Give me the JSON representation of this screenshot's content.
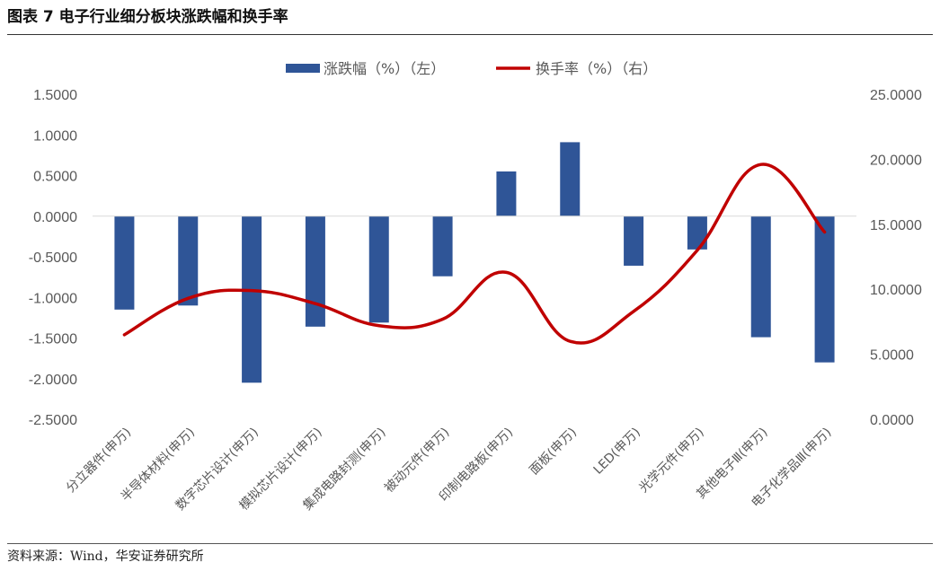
{
  "title": "图表 7 电子行业细分板块涨跌幅和换手率",
  "source": "资料来源：Wind，华安证券研究所",
  "chart_data": {
    "type": "bar+line",
    "categories": [
      "分立器件(申万)",
      "半导体材料(申万)",
      "数字芯片设计(申万)",
      "模拟芯片设计(申万)",
      "集成电路封测(申万)",
      "被动元件(申万)",
      "印制电路板(申万)",
      "面板(申万)",
      "LED(申万)",
      "光学元件(申万)",
      "其他电子Ⅲ(申万)",
      "电子化学品Ⅲ(申万)"
    ],
    "series": [
      {
        "name": "涨跌幅（%）（左）",
        "type": "bar",
        "axis": "left",
        "color": "#2F5597",
        "values": [
          -1.15,
          -1.1,
          -2.05,
          -1.36,
          -1.31,
          -0.74,
          0.55,
          0.91,
          -0.61,
          -0.41,
          -1.49,
          -1.8
        ]
      },
      {
        "name": "换手率（%）（右）",
        "type": "line",
        "axis": "right",
        "color": "#C00000",
        "values": [
          6.5,
          9.3,
          9.9,
          8.9,
          7.2,
          7.7,
          11.3,
          6.0,
          8.3,
          13.0,
          19.6,
          14.4
        ]
      }
    ],
    "y_left": {
      "min": -2.5,
      "max": 1.5,
      "step": 0.5,
      "ticks": [
        "1.5000",
        "1.0000",
        "0.5000",
        "0.0000",
        "-0.5000",
        "-1.0000",
        "-1.5000",
        "-2.0000",
        "-2.5000"
      ]
    },
    "y_right": {
      "min": 0,
      "max": 25,
      "step": 5,
      "ticks": [
        "25.0000",
        "20.0000",
        "15.0000",
        "10.0000",
        "5.0000",
        "0.0000"
      ]
    },
    "legend_position": "top-center",
    "grid": false
  }
}
